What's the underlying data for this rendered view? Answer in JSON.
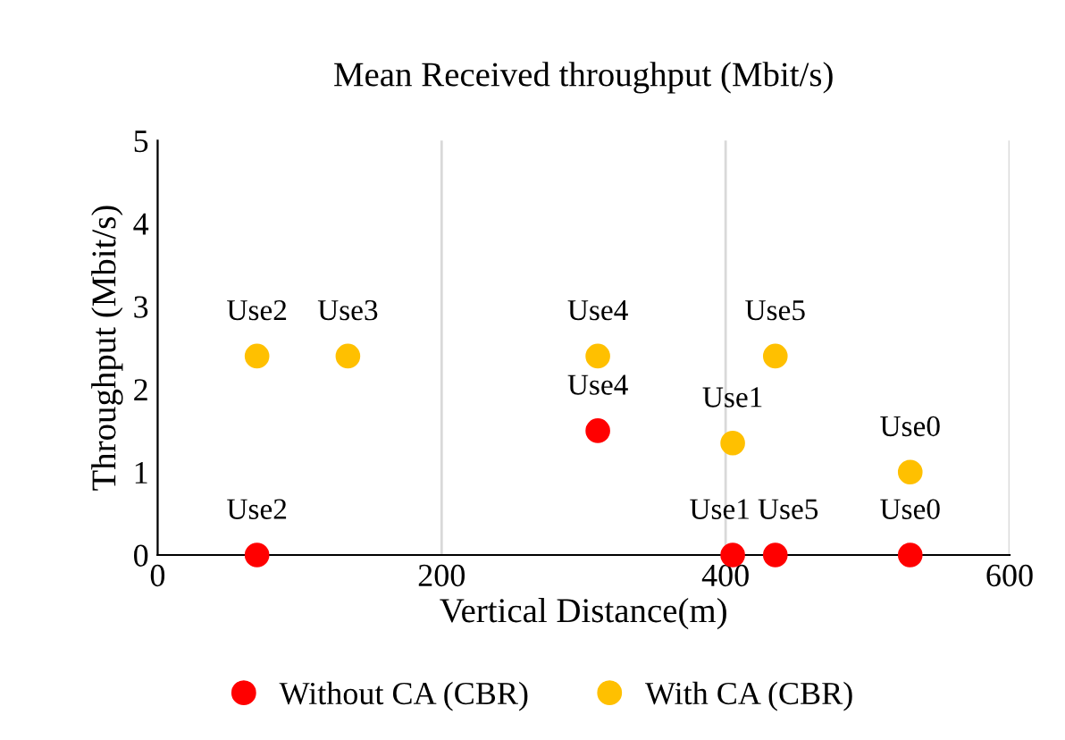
{
  "chart_data": {
    "type": "scatter",
    "title": "Mean Received throughput (Mbit/s)",
    "xlabel": "Vertical Distance(m)",
    "ylabel": "Throughput (Mbit/s)",
    "xlim": [
      0,
      600
    ],
    "xticks": [
      0,
      200,
      400,
      600
    ],
    "ylim": [
      0,
      5
    ],
    "yticks": [
      0,
      1,
      2,
      3,
      4,
      5
    ],
    "grid": "x",
    "legend": "bottom",
    "marker": "circle",
    "series": [
      {
        "name": "Without CA (CBR)",
        "color": "#ff0000",
        "x": [
          70,
          310,
          405,
          435,
          530
        ],
        "values": [
          0,
          1.5,
          0,
          0,
          0
        ],
        "value_labels": [
          "Use2",
          "Use4",
          "Use1",
          "Use5",
          "Use0"
        ]
      },
      {
        "name": "With CA (CBR)",
        "color": "#ffc000",
        "x": [
          70,
          134,
          310,
          405,
          435,
          530
        ],
        "values": [
          2.4,
          2.4,
          2.4,
          1.35,
          2.4,
          1.0
        ],
        "value_labels": [
          "Use2",
          "Use3",
          "Use4",
          "Use1",
          "Use5",
          "Use0"
        ]
      }
    ]
  }
}
